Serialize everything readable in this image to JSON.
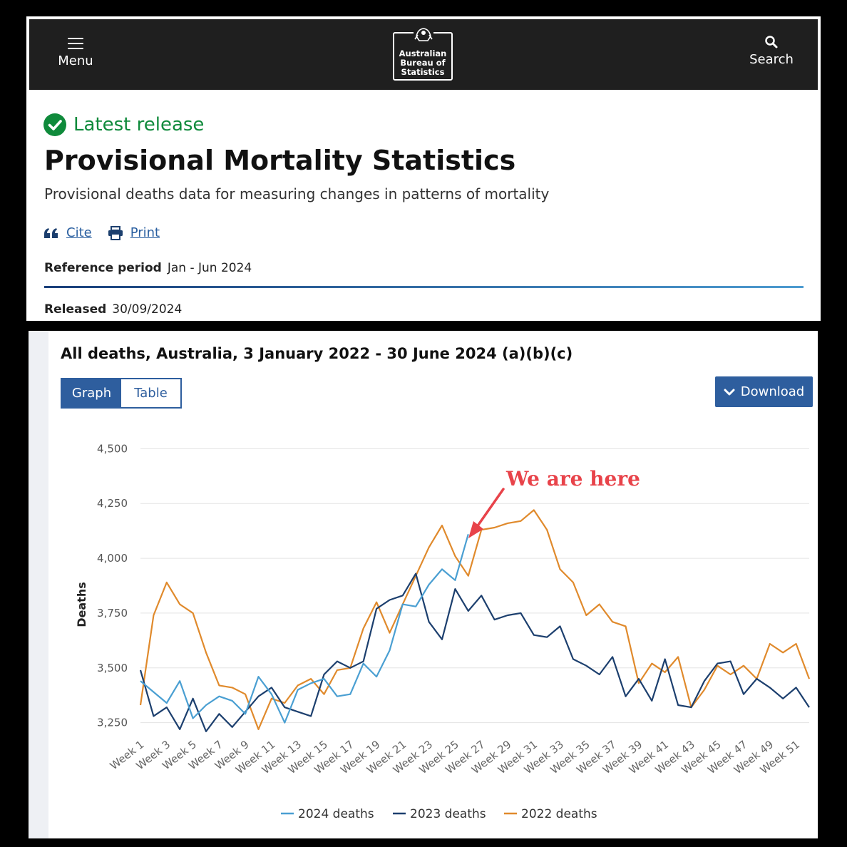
{
  "header": {
    "menu_label": "Menu",
    "search_label": "Search",
    "logo_lines": [
      "Australian",
      "Bureau of",
      "Statistics"
    ]
  },
  "release": {
    "badge": "Latest release",
    "title": "Provisional Mortality Statistics",
    "subtitle": "Provisional deaths data for measuring changes in patterns of mortality",
    "cite_label": "Cite",
    "print_label": "Print",
    "reference_period_label": "Reference period",
    "reference_period_value": "Jan - Jun 2024",
    "released_label": "Released",
    "released_value": "30/09/2024"
  },
  "chart_panel": {
    "title": "All deaths, Australia, 3 January 2022 - 30 June 2024 (a)(b)(c)",
    "tab_graph": "Graph",
    "tab_table": "Table",
    "download_label": "Download",
    "annotation": "We are here"
  },
  "colors": {
    "series_2024": "#4a9fd2",
    "series_2023": "#1c3f6e",
    "series_2022": "#e08a2c",
    "accent": "#2e5e9e",
    "annotation": "#e8434a"
  },
  "chart_data": {
    "type": "line",
    "ylabel": "Deaths",
    "ylim": [
      3200,
      4550
    ],
    "yticks": [
      3250,
      3500,
      3750,
      4000,
      4250,
      4500
    ],
    "ytick_labels": [
      "3,250",
      "3,500",
      "3,750",
      "4,000",
      "4,250",
      "4,500"
    ],
    "xtick_labels": [
      "Week 1",
      "Week 3",
      "Week 5",
      "Week 7",
      "Week 9",
      "Week 11",
      "Week 13",
      "Week 15",
      "Week 17",
      "Week 19",
      "Week 21",
      "Week 23",
      "Week 25",
      "Week 27",
      "Week 29",
      "Week 31",
      "Week 33",
      "Week 35",
      "Week 37",
      "Week 39",
      "Week 41",
      "Week 43",
      "Week 45",
      "Week 47",
      "Week 49",
      "Week 51"
    ],
    "grid": true,
    "legend_position": "bottom",
    "series": [
      {
        "name": "2024 deaths",
        "color": "#4a9fd2",
        "x": [
          1,
          2,
          3,
          4,
          5,
          6,
          7,
          8,
          9,
          10,
          11,
          12,
          13,
          14,
          15,
          16,
          17,
          18,
          19,
          20,
          21,
          22,
          23,
          24,
          25,
          26
        ],
        "values": [
          3440,
          3390,
          3340,
          3440,
          3270,
          3330,
          3370,
          3350,
          3290,
          3460,
          3380,
          3250,
          3400,
          3430,
          3450,
          3370,
          3380,
          3520,
          3460,
          3580,
          3790,
          3780,
          3880,
          3950,
          3900,
          4110
        ]
      },
      {
        "name": "2023 deaths",
        "color": "#1c3f6e",
        "x": [
          1,
          2,
          3,
          4,
          5,
          6,
          7,
          8,
          9,
          10,
          11,
          12,
          13,
          14,
          15,
          16,
          17,
          18,
          19,
          20,
          21,
          22,
          23,
          24,
          25,
          26,
          27,
          28,
          29,
          30,
          31,
          32,
          33,
          34,
          35,
          36,
          37,
          38,
          39,
          40,
          41,
          42,
          43,
          44,
          45,
          46,
          47,
          48,
          49,
          50,
          51,
          52
        ],
        "values": [
          3490,
          3280,
          3320,
          3220,
          3360,
          3210,
          3290,
          3230,
          3300,
          3370,
          3410,
          3320,
          3300,
          3280,
          3470,
          3530,
          3500,
          3530,
          3770,
          3810,
          3830,
          3930,
          3710,
          3630,
          3860,
          3760,
          3830,
          3720,
          3740,
          3750,
          3650,
          3640,
          3690,
          3540,
          3510,
          3470,
          3550,
          3370,
          3450,
          3350,
          3540,
          3330,
          3320,
          3440,
          3520,
          3530,
          3380,
          3450,
          3410,
          3360,
          3410,
          3320
        ]
      },
      {
        "name": "2022 deaths",
        "color": "#e08a2c",
        "x": [
          1,
          2,
          3,
          4,
          5,
          6,
          7,
          8,
          9,
          10,
          11,
          12,
          13,
          14,
          15,
          16,
          17,
          18,
          19,
          20,
          21,
          22,
          23,
          24,
          25,
          26,
          27,
          28,
          29,
          30,
          31,
          32,
          33,
          34,
          35,
          36,
          37,
          38,
          39,
          40,
          41,
          42,
          43,
          44,
          45,
          46,
          47,
          48,
          49,
          50,
          51,
          52
        ],
        "values": [
          3330,
          3740,
          3890,
          3790,
          3750,
          3570,
          3420,
          3410,
          3380,
          3220,
          3360,
          3340,
          3420,
          3450,
          3380,
          3490,
          3500,
          3680,
          3800,
          3660,
          3790,
          3920,
          4050,
          4150,
          4010,
          3920,
          4130,
          4140,
          4160,
          4170,
          4220,
          4130,
          3950,
          3890,
          3740,
          3790,
          3710,
          3690,
          3430,
          3520,
          3480,
          3550,
          3320,
          3400,
          3510,
          3470,
          3510,
          3450,
          3610,
          3570,
          3610,
          3450
        ]
      }
    ]
  }
}
